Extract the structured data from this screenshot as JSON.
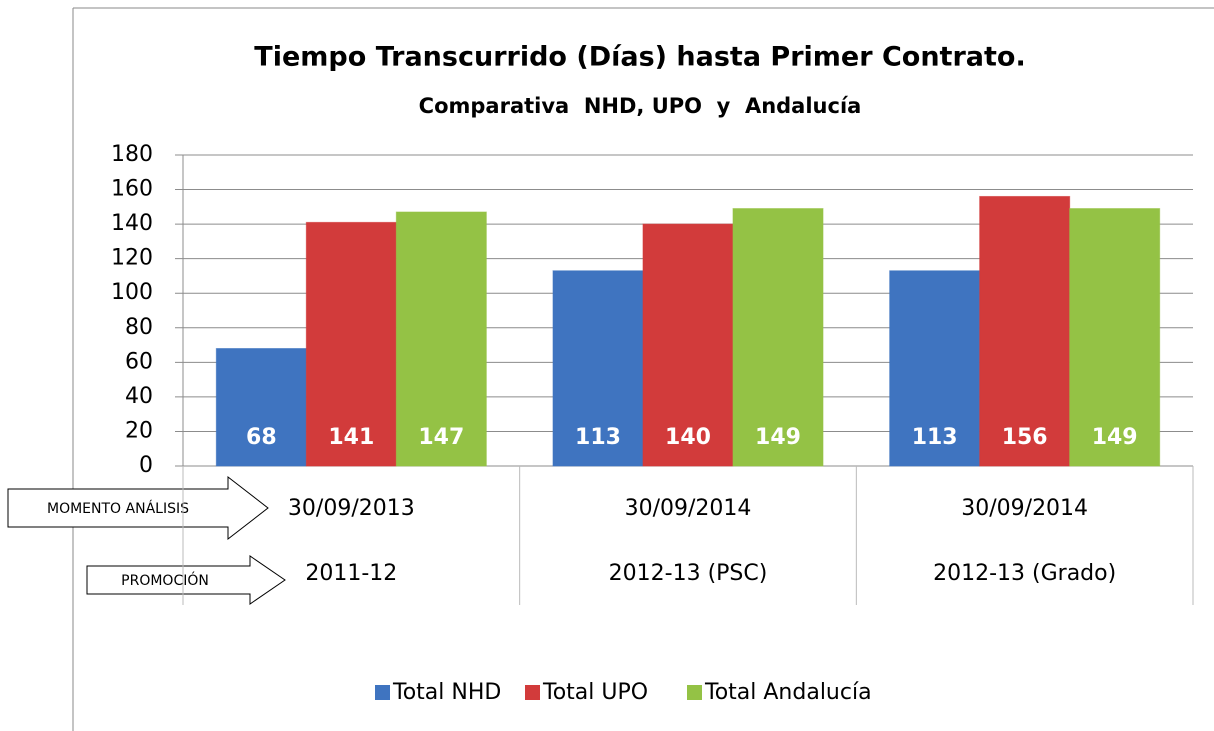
{
  "chart_data": {
    "type": "bar",
    "title": "Tiempo Transcurrido (Días) hasta Primer Contrato.",
    "subtitle": "Comparativa  NHD, UPO  y  Andalucía",
    "analysis_dates": [
      "30/09/2013",
      "30/09/2014",
      "30/09/2014"
    ],
    "categories": [
      "2011-12",
      "2012-13 (PSC)",
      "2012-13 (Grado)"
    ],
    "series": [
      {
        "name": "Total NHD",
        "color": "#3f74c0",
        "values": [
          68,
          113,
          113
        ]
      },
      {
        "name": "Total UPO",
        "color": "#d23b3b",
        "values": [
          141,
          140,
          156
        ]
      },
      {
        "name": "Total Andalucía",
        "color": "#94c245",
        "values": [
          147,
          149,
          149
        ]
      }
    ],
    "ylim": [
      0,
      180
    ],
    "yticks": [
      0,
      20,
      40,
      60,
      80,
      100,
      120,
      140,
      160,
      180
    ],
    "grid": true,
    "annotations": [
      "MOMENTO ANÁLISIS",
      "PROMOCIÓN"
    ],
    "legend": "bottom"
  }
}
